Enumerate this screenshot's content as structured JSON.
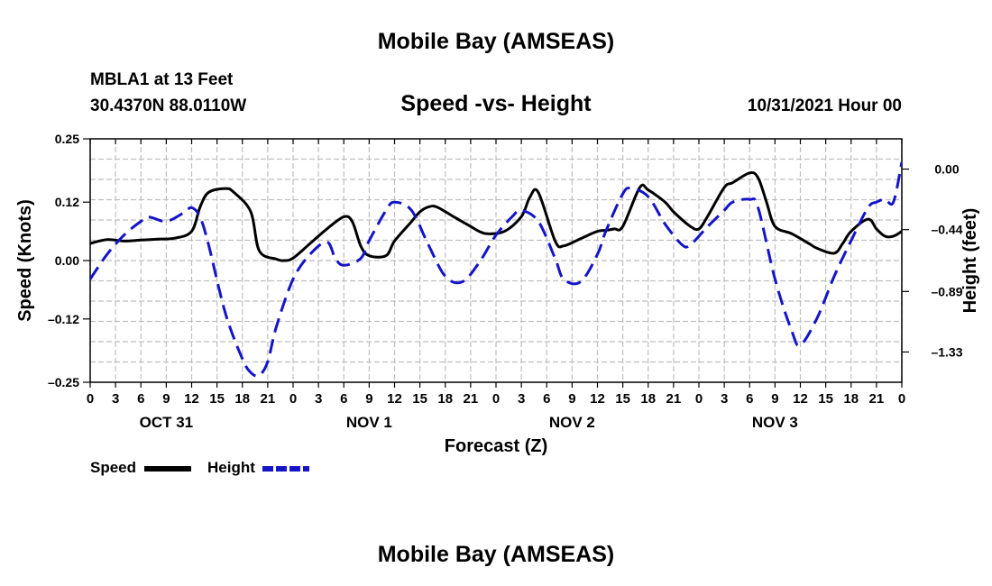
{
  "header": {
    "top_title": "Mobile Bay (AMSEAS)",
    "station": "MBLA1 at 13 Feet",
    "coords": "30.4370N  88.0110W",
    "chart_title": "Speed -vs- Height",
    "run_time": "10/31/2021 Hour 00",
    "bottom_title": "Mobile Bay (AMSEAS)"
  },
  "legend": {
    "speed_label": "Speed",
    "height_label": "Height"
  },
  "chart_data": {
    "type": "line",
    "title": "Speed -vs- Height",
    "xlabel": "Forecast (Z)",
    "ylabel": "Speed (Knots)",
    "y2label": "Height (feet)",
    "xlim": [
      0,
      96
    ],
    "ylim": [
      -0.25,
      0.25
    ],
    "y2lim": [
      -1.55,
      0.22
    ],
    "x_tick_labels": [
      "0",
      "3",
      "6",
      "9",
      "12",
      "15",
      "18",
      "21",
      "0",
      "3",
      "6",
      "9",
      "12",
      "15",
      "18",
      "21",
      "0",
      "3",
      "6",
      "9",
      "12",
      "15",
      "18",
      "21",
      "0",
      "3",
      "6",
      "9",
      "12",
      "15",
      "18",
      "21",
      "0"
    ],
    "y_ticks": [
      -0.25,
      -0.12,
      0.0,
      0.12,
      0.25
    ],
    "y_tick_labels": [
      "–0.25",
      "–0.12",
      "0.00",
      "0.12",
      "0.25"
    ],
    "y2_ticks": [
      -1.33,
      -0.89,
      -0.44,
      0.0
    ],
    "y2_tick_labels": [
      "–1.33",
      "–0.89",
      "–0.44",
      "0.00"
    ],
    "day_labels": [
      {
        "x": 9,
        "label": "OCT 31"
      },
      {
        "x": 33,
        "label": "NOV 1"
      },
      {
        "x": 57,
        "label": "NOV 2"
      },
      {
        "x": 81,
        "label": "NOV 3"
      }
    ],
    "grid": true,
    "series": [
      {
        "name": "Speed",
        "axis": "left",
        "color": "#000000",
        "style": "solid",
        "x": [
          0,
          2,
          4,
          6,
          8,
          10,
          12,
          13,
          14,
          16,
          17,
          19,
          20,
          22,
          23,
          24,
          26,
          28,
          30,
          31,
          32,
          33,
          35,
          36,
          38,
          39,
          40,
          41,
          43,
          45,
          46,
          47,
          49,
          51,
          52,
          53,
          55,
          56,
          58,
          60,
          61,
          62,
          63,
          65,
          66,
          68,
          69,
          71,
          72,
          73,
          75,
          76,
          78,
          79,
          80,
          81,
          83,
          85,
          86,
          88,
          89,
          90,
          92,
          93,
          94,
          95,
          96
        ],
        "values": [
          0.035,
          0.043,
          0.04,
          0.042,
          0.044,
          0.046,
          0.06,
          0.11,
          0.14,
          0.148,
          0.14,
          0.1,
          0.02,
          0.003,
          0.0,
          0.005,
          0.035,
          0.065,
          0.09,
          0.08,
          0.03,
          0.01,
          0.01,
          0.04,
          0.08,
          0.1,
          0.11,
          0.11,
          0.09,
          0.07,
          0.06,
          0.055,
          0.06,
          0.09,
          0.13,
          0.14,
          0.04,
          0.03,
          0.045,
          0.06,
          0.062,
          0.065,
          0.07,
          0.15,
          0.145,
          0.12,
          0.1,
          0.07,
          0.065,
          0.09,
          0.15,
          0.16,
          0.18,
          0.17,
          0.12,
          0.07,
          0.055,
          0.035,
          0.025,
          0.015,
          0.035,
          0.06,
          0.085,
          0.065,
          0.05,
          0.05,
          0.06
        ]
      },
      {
        "name": "Height",
        "axis": "right",
        "color": "#1414c8",
        "style": "dashed",
        "x": [
          0,
          2,
          4,
          6,
          7,
          9,
          11,
          12,
          13,
          14,
          16,
          18,
          19,
          20,
          21,
          22,
          24,
          26,
          28,
          29,
          30,
          32,
          33,
          35,
          36,
          38,
          40,
          42,
          44,
          46,
          48,
          50,
          51,
          53,
          55,
          56,
          58,
          60,
          61,
          63,
          64,
          66,
          68,
          70,
          71,
          73,
          75,
          76,
          78,
          79,
          81,
          83,
          84,
          86,
          88,
          90,
          92,
          93,
          94,
          95,
          96
        ],
        "values": [
          -0.8,
          -0.62,
          -0.48,
          -0.38,
          -0.35,
          -0.38,
          -0.32,
          -0.28,
          -0.35,
          -0.55,
          -1.05,
          -1.38,
          -1.48,
          -1.5,
          -1.4,
          -1.15,
          -0.8,
          -0.62,
          -0.53,
          -0.65,
          -0.7,
          -0.65,
          -0.52,
          -0.3,
          -0.24,
          -0.3,
          -0.55,
          -0.78,
          -0.82,
          -0.68,
          -0.48,
          -0.34,
          -0.3,
          -0.38,
          -0.65,
          -0.8,
          -0.82,
          -0.62,
          -0.45,
          -0.18,
          -0.14,
          -0.2,
          -0.4,
          -0.55,
          -0.55,
          -0.42,
          -0.3,
          -0.24,
          -0.22,
          -0.28,
          -0.8,
          -1.18,
          -1.28,
          -1.08,
          -0.78,
          -0.52,
          -0.28,
          -0.24,
          -0.22,
          -0.24,
          0.05
        ]
      }
    ]
  }
}
